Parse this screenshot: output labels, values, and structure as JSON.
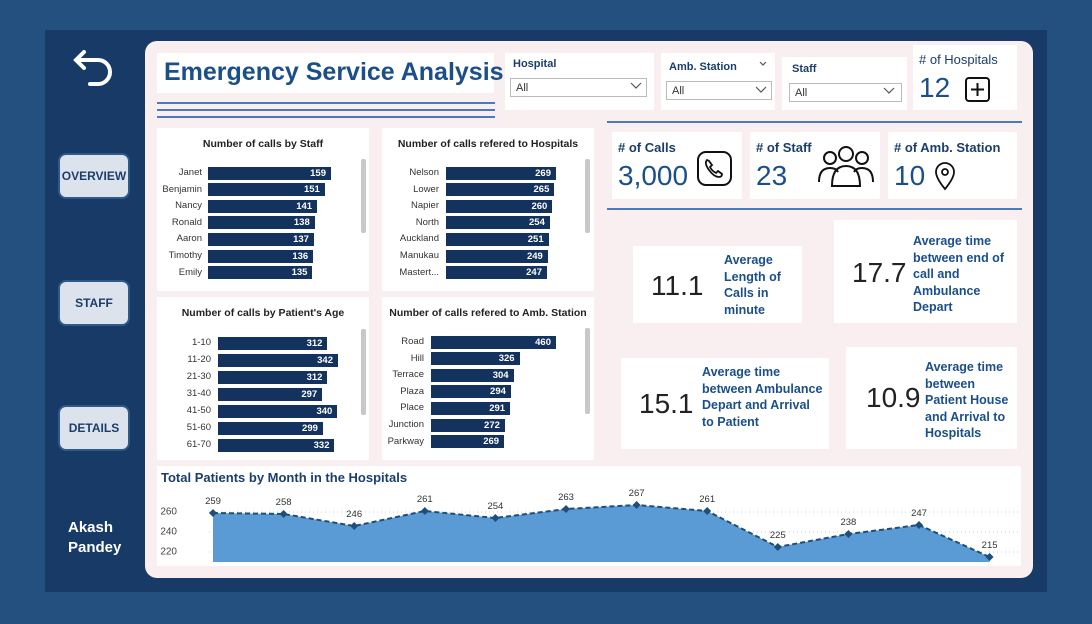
{
  "nav": {
    "buttons": [
      "OVERVIEW",
      "STAFF",
      "DETAILS"
    ],
    "user": "Akash Pandey"
  },
  "header": {
    "title": "Emergency Service Analysis"
  },
  "filters": [
    {
      "label": "Hospital",
      "value": "All"
    },
    {
      "label": "Amb. Station",
      "value": "All"
    },
    {
      "label": "Staff",
      "value": "All"
    }
  ],
  "cards": [
    {
      "label": "# of Hospitals",
      "value": "12"
    },
    {
      "label": "# of Calls",
      "value": "3,000"
    },
    {
      "label": "# of Staff",
      "value": "23"
    },
    {
      "label": "# of Amb. Station",
      "value": "10"
    }
  ],
  "stats": [
    {
      "value": "11.1",
      "label": "Average Length of Calls in minute"
    },
    {
      "value": "17.7",
      "label": "Average time between end of call and Ambulance Depart"
    },
    {
      "value": "15.1",
      "label": "Average time between Ambulance Depart and Arrival to Patient"
    },
    {
      "value": "10.9",
      "label": "Average time between Patient House and Arrival to Hospitals"
    }
  ],
  "chart_data": [
    {
      "type": "bar",
      "orientation": "horizontal",
      "title": "Number of calls by Staff",
      "categories": [
        "Janet",
        "Benjamin",
        "Nancy",
        "Ronald",
        "Aaron",
        "Timothy",
        "Emily"
      ],
      "values": [
        159,
        151,
        141,
        138,
        137,
        136,
        135
      ],
      "color": "#13325e"
    },
    {
      "type": "bar",
      "orientation": "horizontal",
      "title": "Number of calls refered to Hospitals",
      "categories": [
        "Nelson",
        "Lower",
        "Napier",
        "North",
        "Auckland",
        "Manukau",
        "Mastert..."
      ],
      "values": [
        269,
        265,
        260,
        254,
        251,
        249,
        247
      ],
      "color": "#13325e"
    },
    {
      "type": "bar",
      "orientation": "horizontal",
      "title": "Number of calls by Patient's Age",
      "categories": [
        "1-10",
        "11-20",
        "21-30",
        "31-40",
        "41-50",
        "51-60",
        "61-70"
      ],
      "values": [
        312,
        342,
        312,
        297,
        340,
        299,
        332
      ],
      "color": "#13325e"
    },
    {
      "type": "bar",
      "orientation": "horizontal",
      "title": "Number of calls refered to Amb. Station",
      "categories": [
        "Road",
        "Hill",
        "Terrace",
        "Plaza",
        "Place",
        "Junction",
        "Parkway"
      ],
      "values": [
        460,
        326,
        304,
        294,
        291,
        272,
        269
      ],
      "color": "#13325e"
    },
    {
      "type": "area",
      "title": "Total Patients by Month in the Hospitals",
      "categories": [
        null,
        null,
        null,
        null,
        null,
        null,
        null,
        null,
        null,
        null,
        null,
        null
      ],
      "values": [
        259,
        258,
        246,
        261,
        254,
        263,
        267,
        261,
        225,
        238,
        247,
        215
      ],
      "ylim": [
        210,
        270
      ],
      "yticks": [
        220,
        240,
        260
      ],
      "grid": true,
      "color": "#5b9bd5",
      "line_color": "#1f4e79"
    }
  ]
}
